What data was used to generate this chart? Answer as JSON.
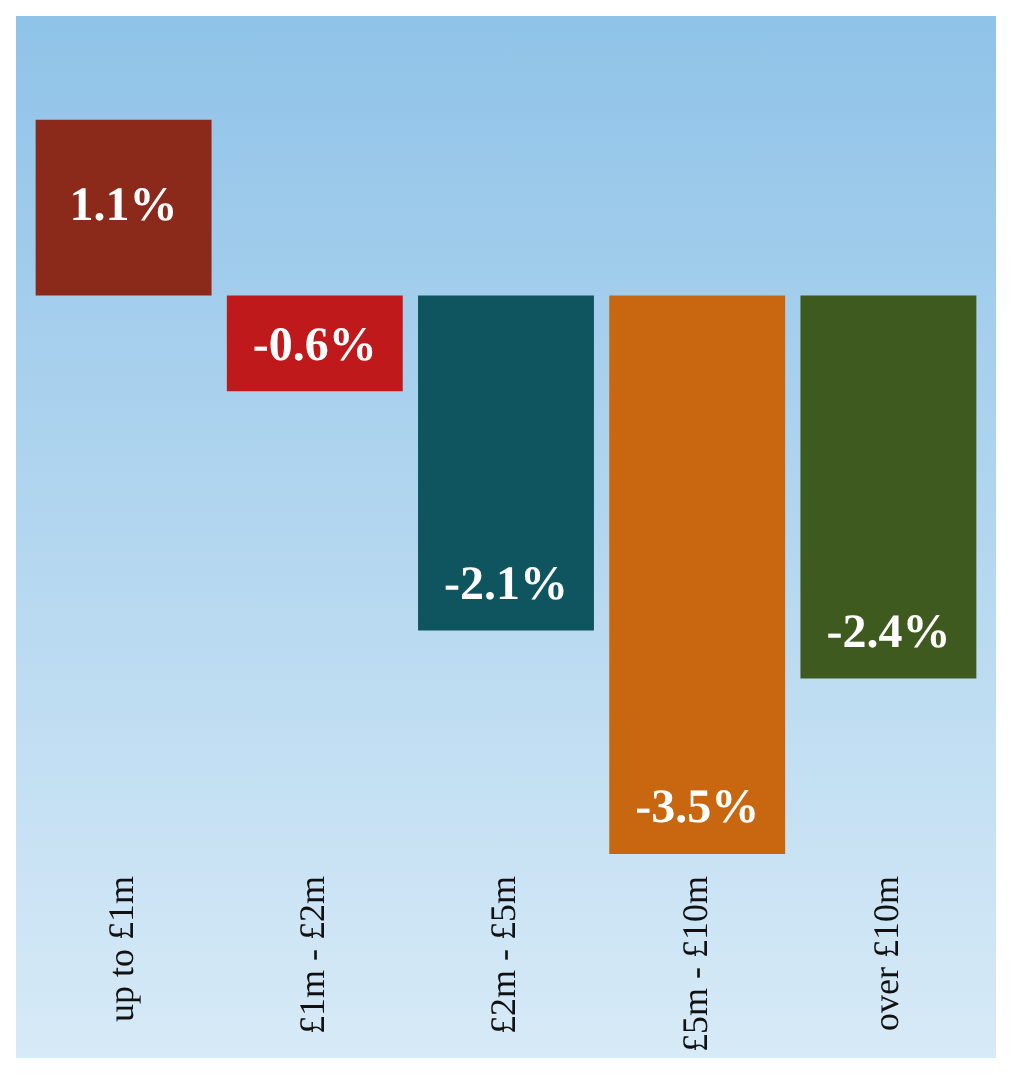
{
  "chart_data": {
    "type": "bar",
    "categories": [
      "up to £1m",
      "£1m - £2m",
      "£2m - £5m",
      "£5m - £10m",
      "over £10m"
    ],
    "values": [
      1.1,
      -0.6,
      -2.1,
      -3.5,
      -2.4
    ],
    "colors": [
      "#8b2a1a",
      "#c0191b",
      "#0e5560",
      "#c8670f",
      "#3f5a1e"
    ],
    "value_labels": [
      "1.1%",
      "-0.6%",
      "-2.1%",
      "-3.5%",
      "-2.4%"
    ],
    "grid": false,
    "legend": false
  }
}
